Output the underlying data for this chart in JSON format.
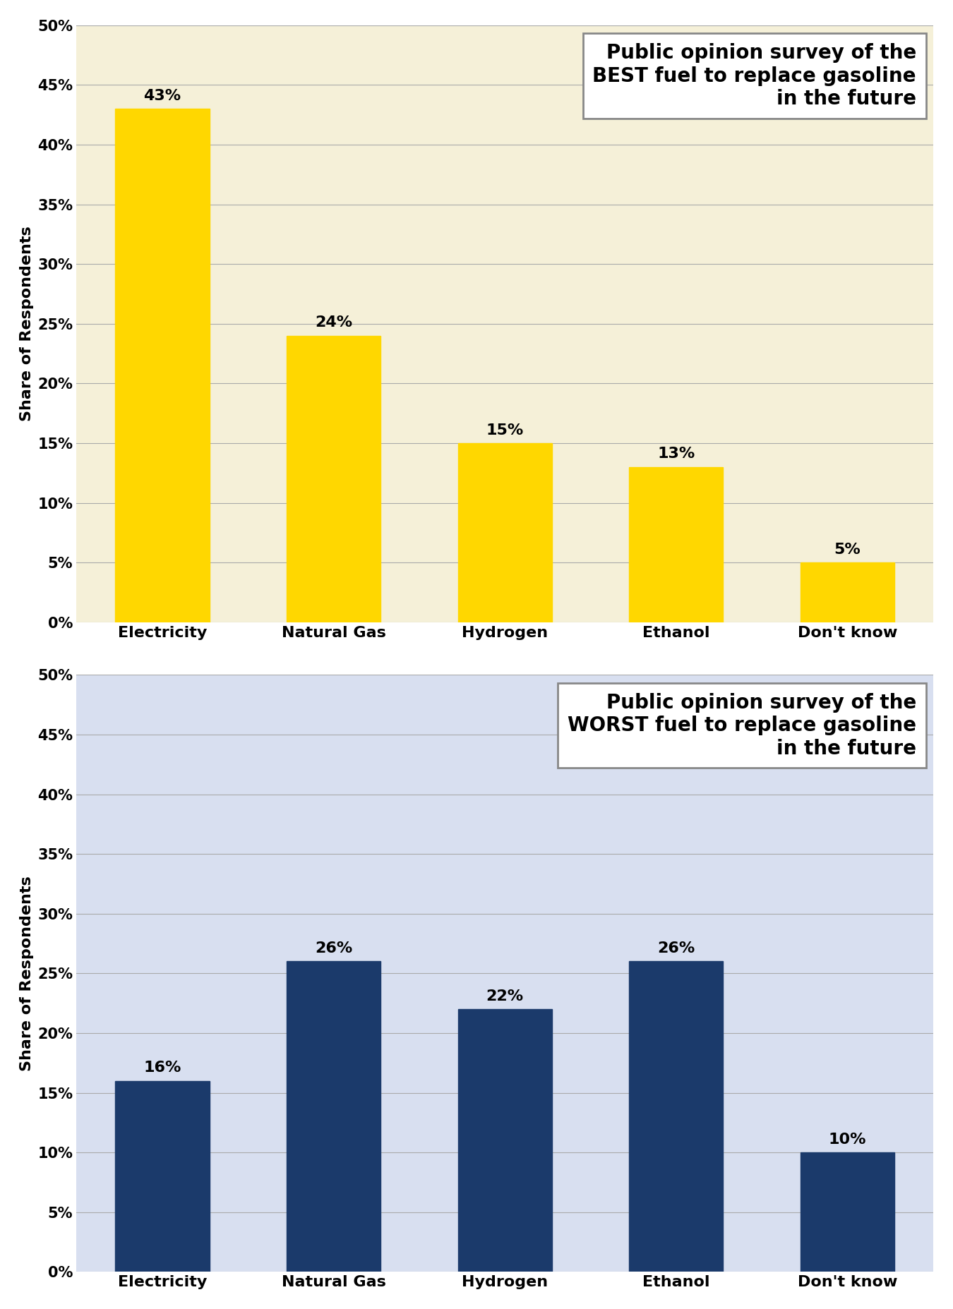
{
  "categories": [
    "Electricity",
    "Natural Gas",
    "Hydrogen",
    "Ethanol",
    "Don't know"
  ],
  "best_values": [
    43,
    24,
    15,
    13,
    5
  ],
  "worst_values": [
    16,
    26,
    22,
    26,
    10
  ],
  "best_bar_color": "#FFD700",
  "worst_bar_color": "#1B3A6B",
  "best_bg_color": "#F5F0D8",
  "worst_bg_color": "#D8DFF0",
  "best_title_line1": "Public opinion survey of the",
  "best_title_line2": "BEST fuel to replace gasoline",
  "best_title_line3": "in the future",
  "worst_title_line1": "Public opinion survey of the",
  "worst_title_line2": "WORST fuel to replace gasoline",
  "worst_title_line3": "in the future",
  "ylabel": "Share of Respondents",
  "ylim": [
    0,
    50
  ],
  "yticks": [
    0,
    5,
    10,
    15,
    20,
    25,
    30,
    35,
    40,
    45,
    50
  ],
  "ytick_labels": [
    "0%",
    "5%",
    "10%",
    "15%",
    "20%",
    "25%",
    "30%",
    "35%",
    "40%",
    "45%",
    "50%"
  ],
  "grid_color": "#AAAAAA",
  "label_fontsize": 16,
  "bar_label_fontsize": 16,
  "title_fontsize": 20,
  "tick_fontsize": 15,
  "outer_bg_color": "#FFFFFF"
}
